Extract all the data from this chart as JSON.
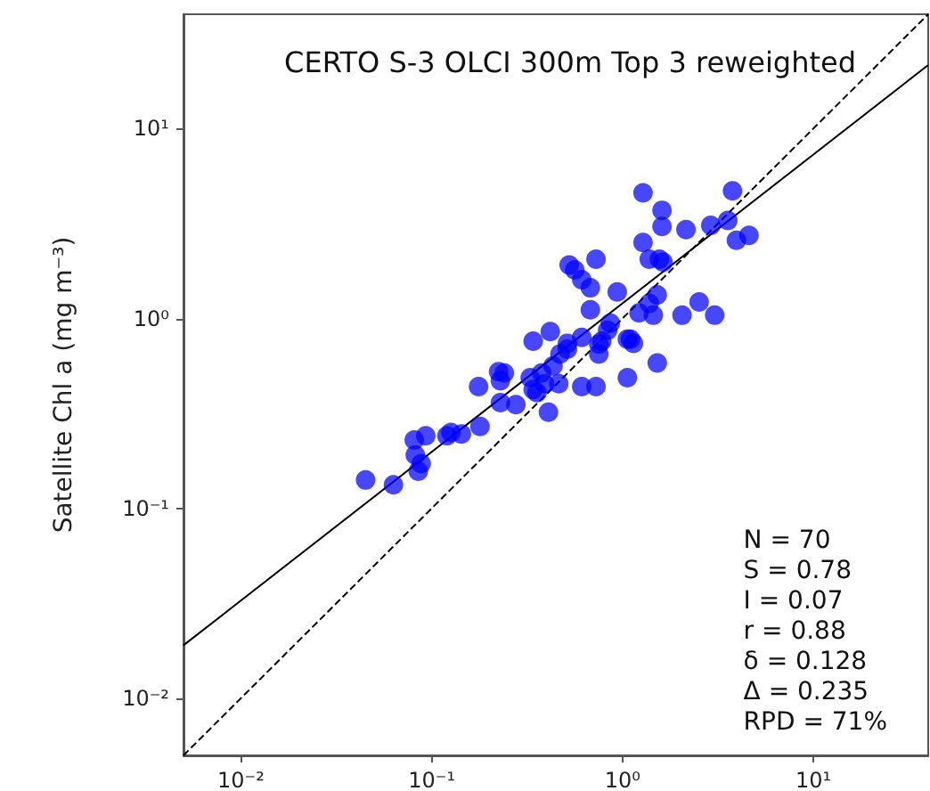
{
  "chart_data": {
    "type": "scatter",
    "title": "CERTO S-3 OLCI 300m Top 3 reweighted",
    "ylabel": "Satellite Chl a (mg m⁻³)",
    "log": "xy",
    "grid": false,
    "marker": "circle",
    "xlim": [
      0.005,
      40
    ],
    "ylim": [
      0.005,
      40
    ],
    "xticks": [
      {
        "value": 0.01,
        "label": "10⁻²"
      },
      {
        "value": 0.1,
        "label": "10⁻¹"
      },
      {
        "value": 1,
        "label": "10⁰"
      },
      {
        "value": 10,
        "label": "10¹"
      }
    ],
    "yticks": [
      {
        "value": 0.01,
        "label": "10⁻²"
      },
      {
        "value": 0.1,
        "label": "10⁻¹"
      },
      {
        "value": 1,
        "label": "10⁰"
      },
      {
        "value": 10,
        "label": "10¹"
      }
    ],
    "annotations": [
      "N = 70",
      "S = 0.78",
      "I = 0.07",
      "r = 0.88",
      "δ = 0.128",
      "Δ = 0.235",
      "RPD = 71%"
    ],
    "series": [
      {
        "color": "#0000ff",
        "x": [
          0.045,
          0.063,
          0.085,
          0.082,
          0.081,
          0.093,
          0.088,
          0.12,
          0.126,
          0.143,
          0.179,
          0.229,
          0.276,
          0.176,
          0.229,
          0.24,
          0.34,
          0.418,
          0.34,
          0.377,
          0.409,
          0.463,
          0.432,
          0.47,
          0.514,
          0.611,
          0.611,
          0.726,
          0.751,
          0.778,
          0.863,
          0.938,
          0.726,
          0.678,
          0.678,
          0.611,
          0.562,
          1.1,
          1.06,
          1.14,
          1.52,
          1.22,
          1.45,
          1.52,
          2.05,
          2.52,
          3.04,
          1.28,
          1.38,
          1.56,
          1.63,
          1.28,
          1.61,
          1.61,
          2.15,
          2.9,
          3.56,
          3.77,
          3.95,
          4.6,
          0.514,
          0.328,
          0.356,
          1.38,
          0.39,
          0.835,
          0.525,
          1.06,
          0.224,
          0.751
        ],
        "values": [
          0.141,
          0.133,
          0.157,
          0.191,
          0.229,
          0.241,
          0.172,
          0.241,
          0.251,
          0.246,
          0.27,
          0.36,
          0.352,
          0.438,
          0.47,
          0.516,
          0.76,
          0.853,
          0.422,
          0.516,
          0.321,
          0.453,
          0.562,
          0.65,
          0.74,
          0.795,
          0.438,
          0.438,
          0.65,
          0.76,
          0.944,
          1.38,
          2.05,
          1.11,
          1.45,
          1.6,
          1.8,
          0.778,
          0.488,
          0.74,
          0.583,
          1.07,
          1.04,
          1.33,
          1.04,
          1.22,
          1.04,
          2.51,
          2.05,
          2.05,
          1.98,
          4.59,
          3.71,
          3.05,
          2.94,
          3.09,
          3.28,
          4.7,
          2.58,
          2.74,
          0.689,
          0.488,
          0.407,
          1.2,
          0.453,
          0.867,
          1.91,
          0.778,
          0.524,
          0.734
        ]
      },
      {
        "type": "line",
        "color": "#000000",
        "line_style": "solid",
        "marker": "none",
        "x": [
          0.005,
          40
        ],
        "values": [
          0.019,
          21.6
        ]
      },
      {
        "type": "line",
        "color": "#000000",
        "line_style": "dashed",
        "marker": "none",
        "x": [
          0.005,
          40
        ],
        "values": [
          0.005,
          40
        ]
      }
    ]
  }
}
